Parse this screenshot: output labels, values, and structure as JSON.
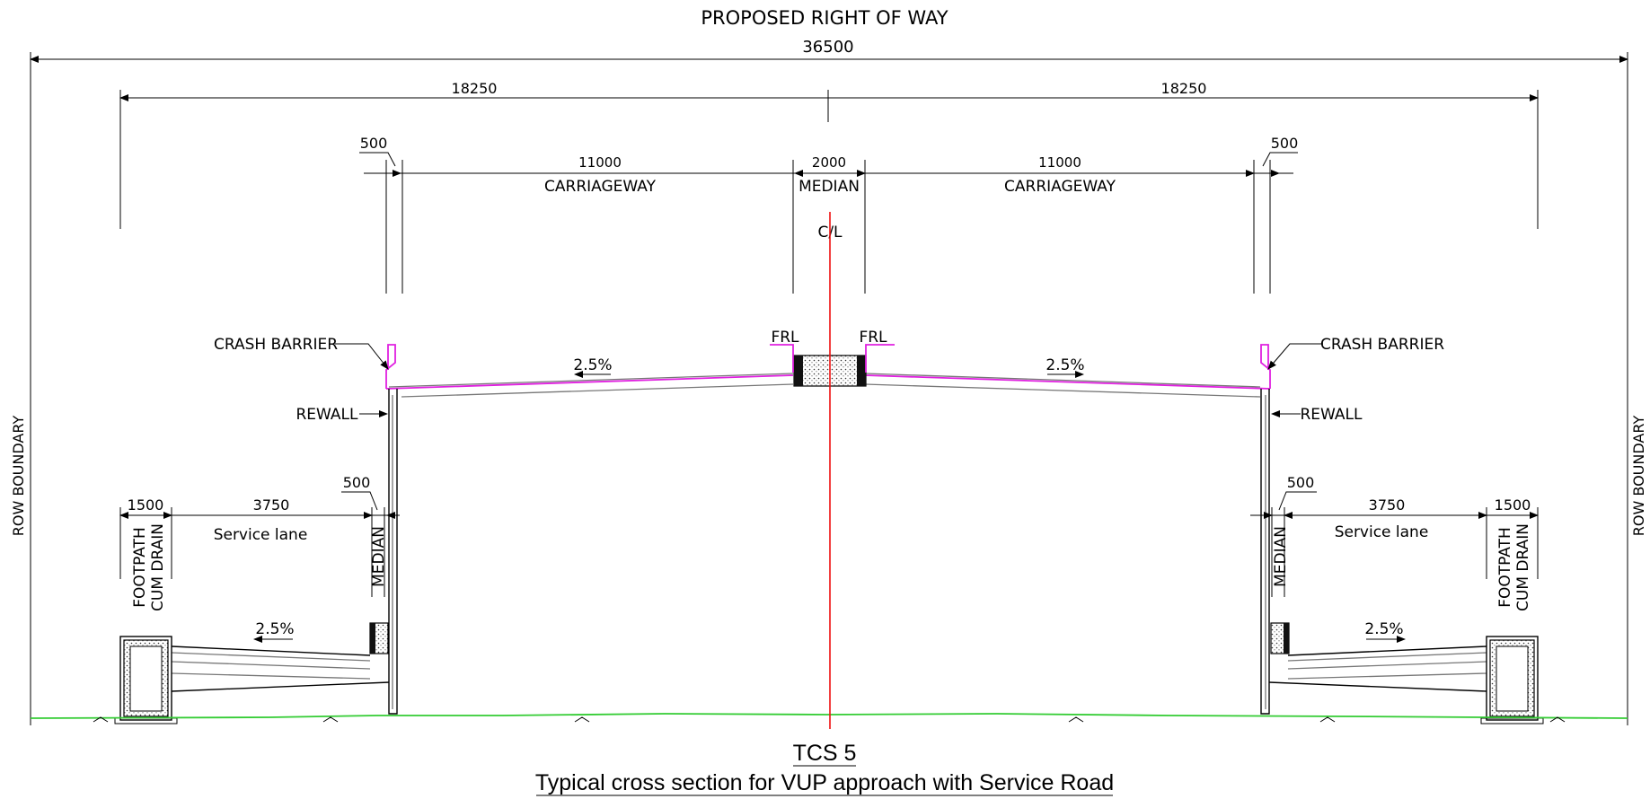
{
  "drawing": {
    "header": "PROPOSED RIGHT OF WAY",
    "total_width": "36500",
    "half_width_left": "18250",
    "half_width_right": "18250",
    "barrier_offset_left": "500",
    "barrier_offset_right": "500",
    "carriageway_width_left": "11000",
    "carriageway_width_right": "11000",
    "carriageway_label_left": "CARRIAGEWAY",
    "carriageway_label_right": "CARRIAGEWAY",
    "median_width": "2000",
    "median_label": "MEDIAN",
    "centerline_label": "C/L",
    "frl_left": "FRL",
    "frl_right": "FRL",
    "crash_barrier_left": "CRASH BARRIER",
    "crash_barrier_right": "CRASH BARRIER",
    "camber_main_left": "2.5%",
    "camber_main_right": "2.5%",
    "rewall_left": "REWALL",
    "rewall_right": "REWALL",
    "row_boundary_left": "ROW BOUNDARY",
    "row_boundary_right": "ROW BOUNDARY",
    "footpath_width_left": "1500",
    "footpath_width_right": "1500",
    "service_lane_width_left": "3750",
    "service_lane_width_right": "3750",
    "service_lane_label_left": "Service lane",
    "service_lane_label_right": "Service lane",
    "service_median_width_left": "500",
    "service_median_width_right": "500",
    "service_median_label_left": "MEDIAN",
    "service_median_label_right": "MEDIAN",
    "footpath_label_l1_left": "FOOTPATH",
    "footpath_label_l2_left": "CUM DRAIN",
    "footpath_label_l1_right": "FOOTPATH",
    "footpath_label_l2_right": "CUM DRAIN",
    "camber_service_left": "2.5%",
    "camber_service_right": "2.5%",
    "title_code": "TCS 5",
    "title_text": "Typical cross section for VUP approach with Service Road"
  },
  "colors": {
    "linework": "#000000",
    "pavement_outline": "#e020e0",
    "ground_line": "#33cc33",
    "centerline": "#ee1111",
    "structure_gray": "#777777"
  }
}
